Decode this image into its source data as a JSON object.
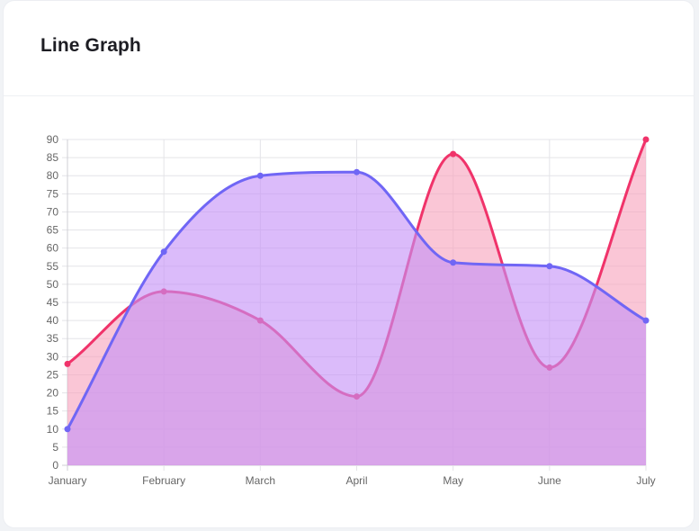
{
  "card": {
    "title": "Line Graph"
  },
  "chart_data": {
    "type": "area",
    "title": "Line Graph",
    "xlabel": "",
    "ylabel": "",
    "categories": [
      "January",
      "February",
      "March",
      "April",
      "May",
      "June",
      "July"
    ],
    "ylim": [
      0,
      90
    ],
    "ytick_step": 5,
    "grid": true,
    "legend": "none",
    "series": [
      {
        "values": [
          28,
          48,
          40,
          19,
          86,
          27,
          90
        ],
        "color": "#f0336a",
        "fill": "#f7a3bd"
      },
      {
        "values": [
          10,
          59,
          80,
          81,
          56,
          55,
          40
        ],
        "color": "#7066f5",
        "fill": "#c592f7"
      }
    ]
  }
}
